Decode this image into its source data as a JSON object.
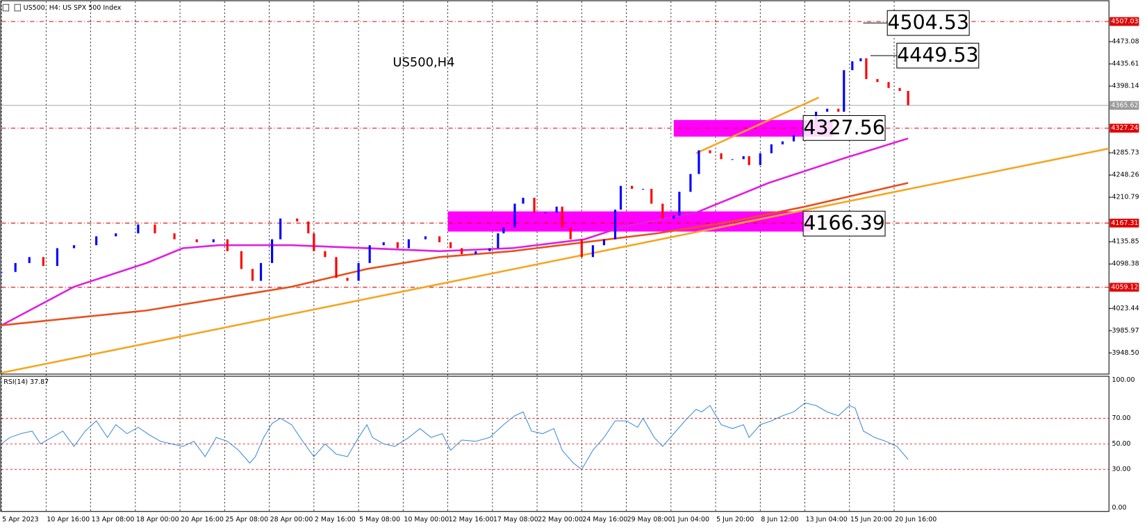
{
  "chart_data": [
    {
      "type": "candlestick",
      "title": "US500, H4:  US SPX 500 Index",
      "subtitle": "US500,H4",
      "x": [
        0,
        5,
        10,
        15,
        20,
        26,
        34,
        41,
        49,
        55,
        62,
        70,
        76,
        81,
        86,
        90,
        93,
        97,
        100,
        106,
        110,
        112,
        116,
        120,
        124,
        128,
        132,
        137,
        142,
        146,
        152,
        157,
        161,
        165,
        170,
        175,
        178,
        180,
        184,
        187,
        191,
        195,
        199,
        201,
        204,
        208,
        212,
        216,
        220,
        222,
        226,
        230,
        233,
        237,
        241,
        243,
        247,
        250,
        254,
        258,
        262,
        266,
        268,
        272,
        276,
        280,
        284,
        288,
        292,
        296,
        300,
        302,
        305,
        308,
        310,
        314,
        318,
        322,
        325
      ],
      "close": [
        4085,
        4100,
        4110,
        4095,
        4125,
        4130,
        4145,
        4150,
        4165,
        4150,
        4140,
        4135,
        4140,
        4120,
        4090,
        4070,
        4100,
        4140,
        4175,
        4170,
        4150,
        4120,
        4110,
        4075,
        4070,
        4100,
        4130,
        4135,
        4125,
        4140,
        4145,
        4135,
        4125,
        4115,
        4120,
        4125,
        4150,
        4160,
        4200,
        4210,
        4185,
        4185,
        4195,
        4160,
        4140,
        4110,
        4130,
        4140,
        4190,
        4230,
        4225,
        4225,
        4200,
        4175,
        4180,
        4220,
        4250,
        4290,
        4285,
        4275,
        4275,
        4280,
        4265,
        4285,
        4300,
        4305,
        4315,
        4340,
        4355,
        4360,
        4355,
        4425,
        4440,
        4445,
        4410,
        4405,
        4395,
        4390,
        4366
      ],
      "up_color": "#0000ff",
      "down_color": "#ff0000",
      "series": [
        {
          "color": "#e020e0",
          "x": [
            0,
            26,
            52,
            65,
            78,
            104,
            131,
            157,
            183,
            209,
            222,
            249,
            275,
            301,
            325
          ],
          "values": [
            3995,
            4060,
            4100,
            4125,
            4130,
            4130,
            4125,
            4120,
            4125,
            4140,
            4160,
            4185,
            4235,
            4275,
            4310
          ]
        },
        {
          "color": "#e8501e",
          "x": [
            0,
            52,
            104,
            131,
            157,
            183,
            209,
            235,
            262,
            288,
            325
          ],
          "values": [
            3995,
            4020,
            4060,
            4090,
            4110,
            4120,
            4135,
            4150,
            4170,
            4195,
            4235
          ]
        }
      ],
      "trendlines": [
        {
          "color": "#f5a623",
          "x": [
            0,
            397
          ],
          "values": [
            3915,
            4293
          ]
        },
        {
          "color": "#f5a623",
          "x": [
            249,
            293
          ],
          "values": [
            4285,
            4379
          ]
        }
      ],
      "zones": [
        {
          "color": "#ff00ff",
          "x": [
            241,
            298
          ],
          "values": [
            4313,
            4341
          ]
        },
        {
          "color": "#ff00ff",
          "x": [
            160,
            290
          ],
          "values": [
            4153,
            4187
          ]
        }
      ],
      "levels": [
        {
          "value": 4507.03,
          "label": "4507.03"
        },
        {
          "value": 4327.24,
          "label": "4327.24"
        },
        {
          "value": 4167.31,
          "label": "4167.31"
        },
        {
          "value": 4059.12,
          "label": "4059.12"
        }
      ],
      "level_color": "#e00000",
      "current": {
        "value": 4365.62,
        "label": "4365.62"
      },
      "annotations": [
        {
          "value": 4504.53,
          "label": "4504.53"
        },
        {
          "value": 4449.53,
          "label": "4449.53"
        },
        {
          "value": 4327.56,
          "label": "4327.56"
        },
        {
          "value": 4166.39,
          "label": "4166.39"
        }
      ],
      "xlim": [
        0,
        397
      ],
      "ylim": [
        3912.8,
        4540.8
      ],
      "yticks": [
        {
          "value": 4473.08,
          "label": "4473.08"
        },
        {
          "value": 4435.61,
          "label": "4435.61"
        },
        {
          "value": 4398.14,
          "label": "4398.14"
        },
        {
          "value": 4285.73,
          "label": "4285.73"
        },
        {
          "value": 4248.26,
          "label": "4248.26"
        },
        {
          "value": 4210.79,
          "label": "4210.79"
        },
        {
          "value": 4135.85,
          "label": "4135.85"
        },
        {
          "value": 4098.38,
          "label": "4098.38"
        },
        {
          "value": 4023.44,
          "label": "4023.44"
        },
        {
          "value": 3985.97,
          "label": "3985.97"
        },
        {
          "value": 3948.5,
          "label": "3948.50"
        }
      ],
      "xticks": [
        {
          "value": 0,
          "label": "5 Apr 2023"
        },
        {
          "value": 16,
          "label": "10 Apr 16:00"
        },
        {
          "value": 32,
          "label": "13 Apr 08:00"
        },
        {
          "value": 48,
          "label": "18 Apr 00:00"
        },
        {
          "value": 64,
          "label": "20 Apr 16:00"
        },
        {
          "value": 80,
          "label": "25 Apr 08:00"
        },
        {
          "value": 96,
          "label": "28 Apr 00:00"
        },
        {
          "value": 112,
          "label": "2 May 16:00"
        },
        {
          "value": 128,
          "label": "5 May 08:00"
        },
        {
          "value": 144,
          "label": "10 May 00:00"
        },
        {
          "value": 160,
          "label": "12 May 16:00"
        },
        {
          "value": 176,
          "label": "17 May 08:00"
        },
        {
          "value": 192,
          "label": "22 May 00:00"
        },
        {
          "value": 208,
          "label": "24 May 16:00"
        },
        {
          "value": 224,
          "label": "29 May 08:00"
        },
        {
          "value": 240,
          "label": "1 Jun 04:00"
        },
        {
          "value": 256,
          "label": "5 Jun 20:00"
        },
        {
          "value": 272,
          "label": "8 Jun 12:00"
        },
        {
          "value": 288,
          "label": "13 Jun 04:00"
        },
        {
          "value": 304,
          "label": "15 Jun 20:00"
        },
        {
          "value": 320,
          "label": "20 Jun 16:00"
        }
      ]
    },
    {
      "type": "line",
      "title": "RSI(14) 37.87",
      "color": "#3c8dd9",
      "x": [
        0,
        3,
        7,
        11,
        14,
        18,
        22,
        26,
        30,
        34,
        38,
        41,
        45,
        49,
        53,
        57,
        61,
        65,
        69,
        73,
        77,
        81,
        85,
        89,
        91,
        94,
        97,
        100,
        104,
        108,
        112,
        116,
        120,
        124,
        128,
        131,
        133,
        137,
        141,
        146,
        150,
        154,
        158,
        161,
        165,
        170,
        175,
        180,
        184,
        187,
        190,
        194,
        198,
        201,
        205,
        208,
        212,
        216,
        220,
        224,
        228,
        230,
        234,
        237,
        241,
        245,
        249,
        251,
        254,
        258,
        262,
        266,
        268,
        272,
        276,
        280,
        284,
        288,
        292,
        296,
        300,
        304,
        306,
        309,
        313,
        317,
        321,
        325
      ],
      "values": [
        50,
        55,
        58,
        60,
        50,
        55,
        60,
        48,
        60,
        68,
        55,
        65,
        58,
        63,
        57,
        52,
        50,
        48,
        52,
        40,
        55,
        52,
        45,
        35,
        40,
        55,
        66,
        70,
        65,
        52,
        40,
        50,
        42,
        40,
        55,
        65,
        55,
        50,
        48,
        55,
        62,
        55,
        58,
        45,
        53,
        52,
        55,
        65,
        72,
        75,
        60,
        58,
        62,
        45,
        35,
        30,
        45,
        55,
        68,
        68,
        63,
        70,
        55,
        48,
        58,
        68,
        77,
        75,
        80,
        65,
        62,
        65,
        55,
        65,
        68,
        72,
        75,
        82,
        80,
        75,
        72,
        80,
        78,
        60,
        55,
        52,
        48,
        37.87
      ],
      "xlim": [
        0,
        397
      ],
      "ylim": [
        0,
        100
      ],
      "yticks": [
        {
          "value": 0,
          "label": "0.00"
        },
        {
          "value": 30,
          "label": "30.00"
        },
        {
          "value": 50,
          "label": "50.00"
        },
        {
          "value": 70,
          "label": "70.00"
        },
        {
          "value": 100,
          "label": "100.00"
        }
      ],
      "grid_color": "#e00000"
    }
  ]
}
